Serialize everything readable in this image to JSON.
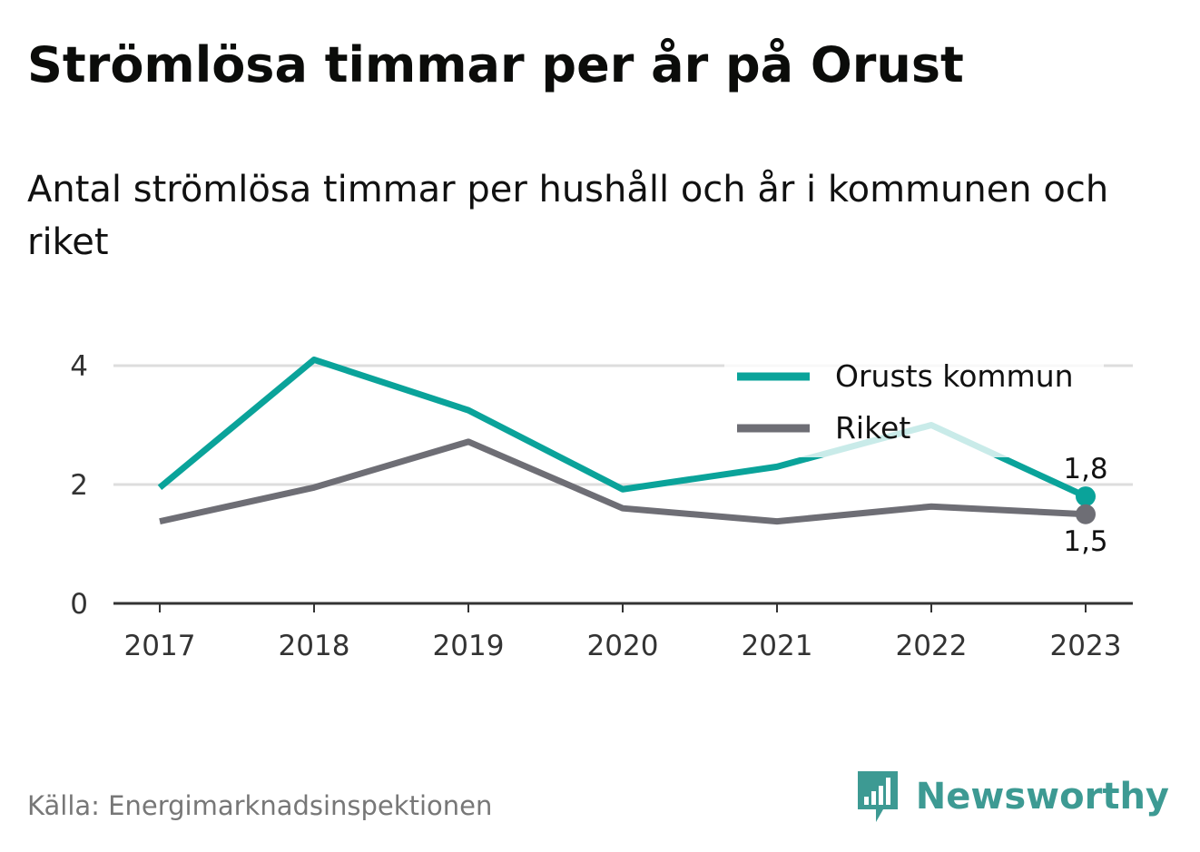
{
  "header": {
    "title": "Strömlösa timmar per år på Orust",
    "subtitle": "Antal strömlösa timmar per hushåll och år i kommunen och riket"
  },
  "footer": {
    "source": "Källa: Energimarknadsinspektionen",
    "brand": "Newsworthy"
  },
  "colors": {
    "orust": "#0aa39a",
    "riket": "#6e6e75",
    "grid": "#dddddd",
    "axis": "#333333",
    "brand": "#3d9a93"
  },
  "chart_data": {
    "type": "line",
    "title": "Strömlösa timmar per år på Orust",
    "subtitle": "Antal strömlösa timmar per hushåll och år i kommunen och riket",
    "categories": [
      "2017",
      "2018",
      "2019",
      "2020",
      "2021",
      "2022",
      "2023"
    ],
    "series": [
      {
        "name": "Orusts kommun",
        "values": [
          1.95,
          4.1,
          3.25,
          1.92,
          2.3,
          3.0,
          1.8
        ],
        "end_label": "1,8",
        "color": "#0aa39a"
      },
      {
        "name": "Riket",
        "values": [
          1.38,
          1.95,
          2.72,
          1.6,
          1.38,
          1.63,
          1.5
        ],
        "end_label": "1,5",
        "color": "#6e6e75"
      }
    ],
    "y_ticks": [
      "0",
      "2",
      "4"
    ],
    "ylim": [
      0,
      4.1
    ],
    "grid": true,
    "legend_position": "top-right",
    "xlabel": "",
    "ylabel": ""
  }
}
